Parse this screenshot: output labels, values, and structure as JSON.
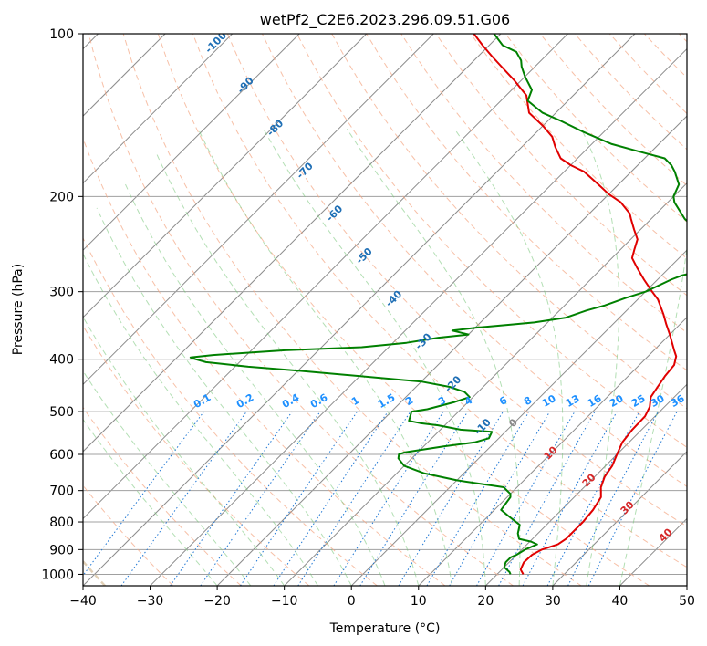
{
  "chart_data": {
    "type": "line",
    "subtype": "skew-t log-p",
    "title": "wetPf2_C2E6.2023.296.09.51.G06",
    "xlabel": "Temperature (°C)",
    "ylabel": "Pressure (hPa)",
    "xlim": [
      -40,
      50
    ],
    "ylim": [
      1050,
      100
    ],
    "y_scale": "log",
    "x_ticks": [
      "−40",
      "−30",
      "−20",
      "−10",
      "0",
      "10",
      "20",
      "30",
      "40",
      "50"
    ],
    "y_ticks": [
      "100",
      "200",
      "300",
      "400",
      "500",
      "600",
      "700",
      "800",
      "900",
      "1000"
    ],
    "grid": true,
    "series": [
      {
        "color": "#e00000",
        "points": [
          [
            23.9,
            1000
          ],
          [
            22.8,
            980
          ],
          [
            22.2,
            950
          ],
          [
            22.3,
            920
          ],
          [
            23,
            900
          ],
          [
            24.6,
            880
          ],
          [
            25,
            860
          ],
          [
            25,
            800
          ],
          [
            24.7,
            760
          ],
          [
            24,
            720
          ],
          [
            22.5,
            690
          ],
          [
            21.5,
            660
          ],
          [
            21,
            630
          ],
          [
            20,
            600
          ],
          [
            19,
            570
          ],
          [
            18.6,
            540
          ],
          [
            18.5,
            510
          ],
          [
            17.8,
            490
          ],
          [
            16.5,
            470
          ],
          [
            16,
            450
          ],
          [
            15.5,
            430
          ],
          [
            15.2,
            410
          ],
          [
            14.2,
            395
          ],
          [
            13,
            385
          ],
          [
            10,
            360
          ],
          [
            8,
            345
          ],
          [
            6,
            330
          ],
          [
            3,
            310
          ],
          [
            1,
            300
          ],
          [
            -2,
            285
          ],
          [
            -5,
            270
          ],
          [
            -7,
            260
          ],
          [
            -8,
            250
          ],
          [
            -9,
            240
          ],
          [
            -11,
            230
          ],
          [
            -13,
            220
          ],
          [
            -14,
            215
          ],
          [
            -17,
            205
          ],
          [
            -20,
            198
          ],
          [
            -23,
            190
          ],
          [
            -27,
            180
          ],
          [
            -30,
            175
          ],
          [
            -32.5,
            170
          ],
          [
            -35,
            162
          ],
          [
            -37,
            155
          ],
          [
            -40,
            148
          ],
          [
            -44,
            140
          ],
          [
            -47,
            130
          ],
          [
            -51,
            122
          ],
          [
            -55,
            115
          ],
          [
            -58,
            110
          ],
          [
            -61,
            105
          ],
          [
            -64,
            100
          ]
        ]
      },
      {
        "color": "#008000",
        "points": [
          [
            22,
            1000
          ],
          [
            21.5,
            990
          ],
          [
            20,
            970
          ],
          [
            19.5,
            950
          ],
          [
            19.5,
            930
          ],
          [
            20,
            920
          ],
          [
            20.5,
            900
          ],
          [
            21.5,
            880
          ],
          [
            20.2,
            870
          ],
          [
            18,
            860
          ],
          [
            17,
            840
          ],
          [
            16,
            810
          ],
          [
            13,
            780
          ],
          [
            11,
            760
          ],
          [
            10.5,
            720
          ],
          [
            10,
            710
          ],
          [
            8,
            690
          ],
          [
            0,
            670
          ],
          [
            -6,
            650
          ],
          [
            -10,
            630
          ],
          [
            -12,
            610
          ],
          [
            -12.5,
            600
          ],
          [
            -12,
            595
          ],
          [
            -7,
            580
          ],
          [
            -3,
            570
          ],
          [
            -1.5,
            560
          ],
          [
            -2,
            545
          ],
          [
            -7,
            540
          ],
          [
            -11,
            530
          ],
          [
            -14,
            525
          ],
          [
            -16,
            520
          ],
          [
            -16.5,
            510
          ],
          [
            -17,
            500
          ],
          [
            -15,
            495
          ],
          [
            -12,
            480
          ],
          [
            -10.5,
            470
          ],
          [
            -12,
            460
          ],
          [
            -15,
            450
          ],
          [
            -20,
            440
          ],
          [
            -40,
            420
          ],
          [
            -48,
            413
          ],
          [
            -55,
            405
          ],
          [
            -57,
            400
          ],
          [
            -58,
            397
          ],
          [
            -55,
            393
          ],
          [
            -45,
            385
          ],
          [
            -34,
            380
          ],
          [
            -28,
            373
          ],
          [
            -24,
            365
          ],
          [
            -20,
            360
          ],
          [
            -22,
            356
          ],
          [
            -23,
            354
          ],
          [
            -20,
            350
          ],
          [
            -15,
            345
          ],
          [
            -12,
            342
          ],
          [
            -8,
            335
          ],
          [
            -6,
            325
          ],
          [
            -4,
            318
          ],
          [
            -2,
            308
          ],
          [
            0,
            300
          ],
          [
            2,
            285
          ],
          [
            3,
            280
          ],
          [
            5,
            275
          ],
          [
            7.5,
            265
          ],
          [
            9,
            257
          ],
          [
            8.5,
            250
          ],
          [
            7,
            240
          ],
          [
            3,
            232
          ],
          [
            -3,
            226
          ],
          [
            -5,
            220
          ],
          [
            -9,
            205
          ],
          [
            -10,
            200
          ],
          [
            -11,
            190
          ],
          [
            -13.5,
            180
          ],
          [
            -15,
            175
          ],
          [
            -17,
            170
          ],
          [
            -22,
            165
          ],
          [
            -27,
            160
          ],
          [
            -33,
            152
          ],
          [
            -38,
            145
          ],
          [
            -42,
            140
          ],
          [
            -46,
            133
          ],
          [
            -47,
            127
          ],
          [
            -50,
            120
          ],
          [
            -52,
            115
          ],
          [
            -53,
            112
          ],
          [
            -55,
            108
          ],
          [
            -58,
            105
          ],
          [
            -61,
            100
          ]
        ]
      }
    ],
    "dry_adiabat_labels": [
      "-100",
      "-90",
      "-80",
      "-70",
      "-60",
      "-50",
      "-40",
      "-30",
      "-20",
      "-10",
      "0",
      "10",
      "20",
      "30",
      "40"
    ],
    "mixing_ratio_labels": [
      "0.1",
      "0.2",
      "0.4",
      "0.6",
      "1",
      "1.5",
      "2",
      "3",
      "4",
      "6",
      "8",
      "10",
      "13",
      "16",
      "20",
      "25",
      "30",
      "36"
    ],
    "colors": {
      "temperature": "#e00000",
      "dewpoint": "#008000",
      "dry_adiabat_label": "#1f6fb5",
      "moist_label_warm": "#d62728",
      "mixing_ratio_label": "#1e90ff",
      "grid": "#aaaaaa"
    }
  }
}
